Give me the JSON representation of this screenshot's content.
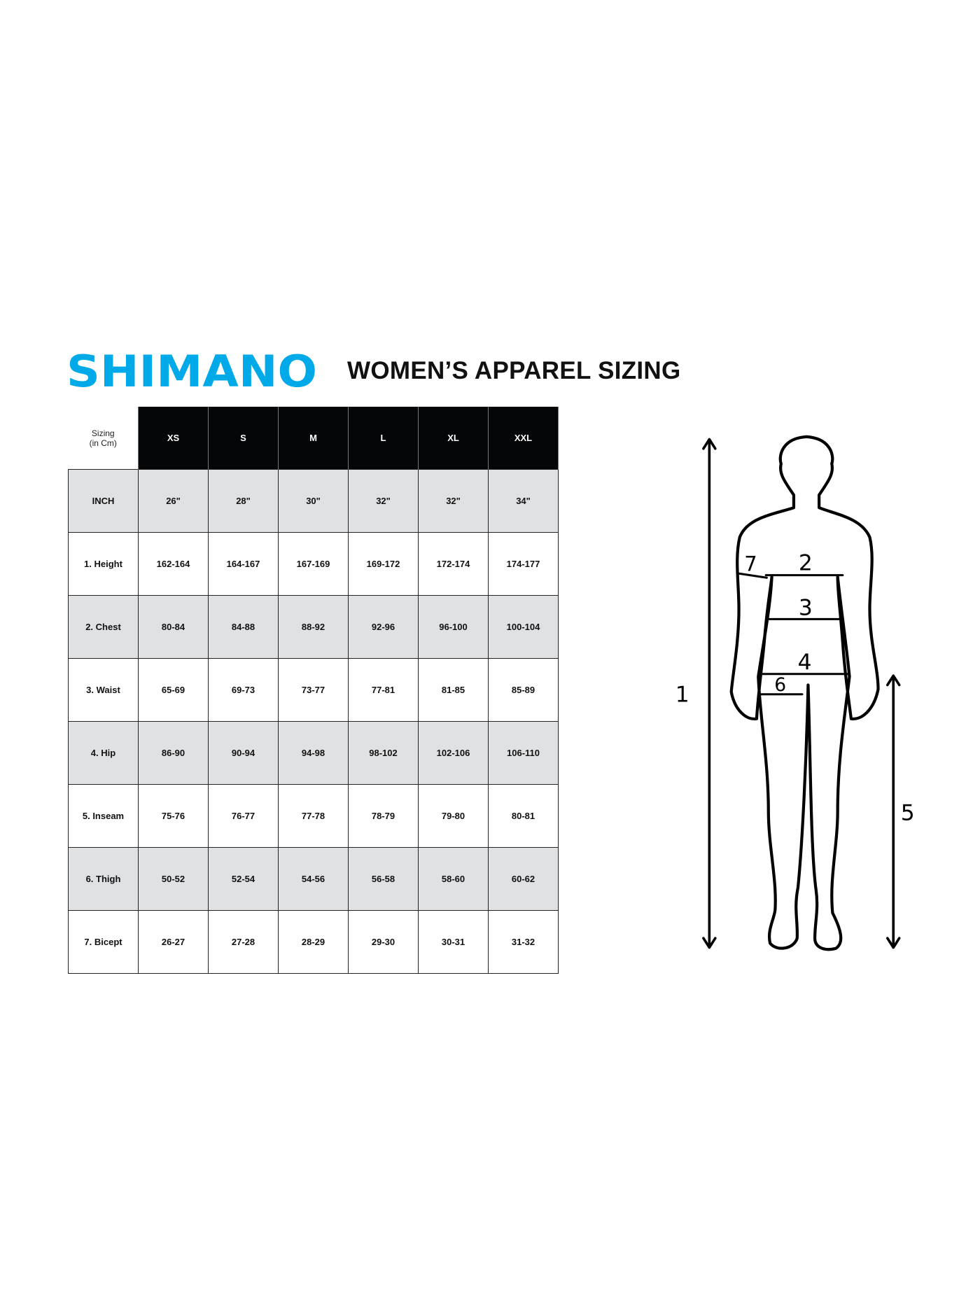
{
  "brand": {
    "logo_text": "SHIMANO",
    "logo_color": "#00a9e8"
  },
  "title": "WOMEN’S APPAREL SIZING",
  "table": {
    "corner_label_line1": "Sizing",
    "corner_label_line2": "(in Cm)",
    "sizes": [
      "XS",
      "S",
      "M",
      "L",
      "XL",
      "XXL"
    ],
    "rows": [
      {
        "label": "INCH",
        "values": [
          "26\"",
          "28\"",
          "30\"",
          "32\"",
          "32\"",
          "34\""
        ]
      },
      {
        "label": "1. Height",
        "values": [
          "162-164",
          "164-167",
          "167-169",
          "169-172",
          "172-174",
          "174-177"
        ]
      },
      {
        "label": "2. Chest",
        "values": [
          "80-84",
          "84-88",
          "88-92",
          "92-96",
          "96-100",
          "100-104"
        ]
      },
      {
        "label": "3. Waist",
        "values": [
          "65-69",
          "69-73",
          "73-77",
          "77-81",
          "81-85",
          "85-89"
        ]
      },
      {
        "label": "4. Hip",
        "values": [
          "86-90",
          "90-94",
          "94-98",
          "98-102",
          "102-106",
          "106-110"
        ]
      },
      {
        "label": "5. Inseam",
        "values": [
          "75-76",
          "76-77",
          "77-78",
          "78-79",
          "79-80",
          "80-81"
        ]
      },
      {
        "label": "6. Thigh",
        "values": [
          "50-52",
          "52-54",
          "54-56",
          "56-58",
          "58-60",
          "60-62"
        ]
      },
      {
        "label": "7. Bicept",
        "values": [
          "26-27",
          "27-28",
          "28-29",
          "29-30",
          "30-31",
          "31-32"
        ]
      }
    ]
  },
  "figure": {
    "markers": [
      "1",
      "2",
      "3",
      "4",
      "5",
      "6",
      "7"
    ]
  }
}
